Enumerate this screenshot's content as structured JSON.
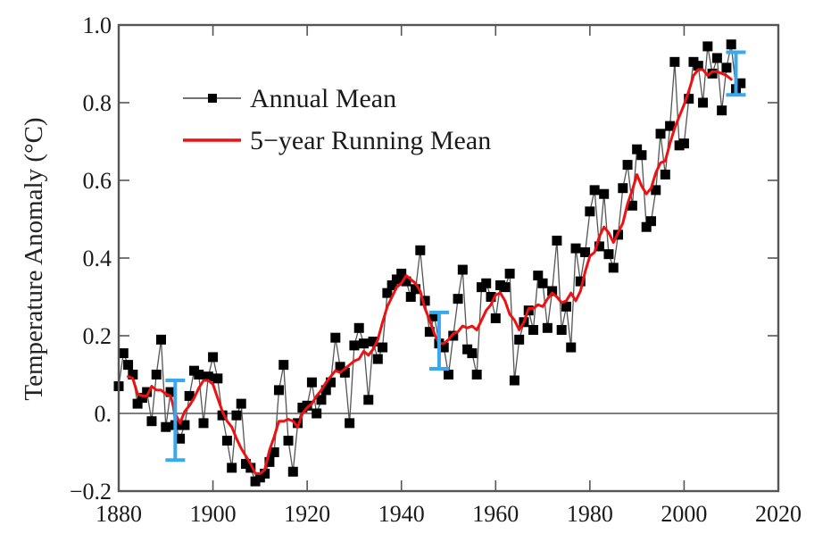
{
  "chart_data": {
    "type": "line",
    "title": "",
    "xlabel": "",
    "ylabel": "Temperature Anomaly (°C)",
    "xlim": [
      1880,
      2020
    ],
    "ylim": [
      -0.2,
      1.0
    ],
    "xticks": [
      1880,
      1900,
      1920,
      1940,
      1960,
      1980,
      2000,
      2020
    ],
    "xtick_labels": [
      "1880",
      "1900",
      "1920",
      "1940",
      "1960",
      "1980",
      "2000",
      "2020"
    ],
    "yticks": [
      -0.2,
      0.0,
      0.2,
      0.4,
      0.6,
      0.8,
      1.0
    ],
    "ytick_labels": [
      "−0.2",
      "0.",
      "0.2",
      "0.4",
      "0.6",
      "0.8",
      "1.0"
    ],
    "grid": false,
    "zero_line": true,
    "legend": {
      "placement": "top-left",
      "entries": [
        {
          "label": "Annual Mean",
          "series": "annual"
        },
        {
          "label": "5−year Running Mean",
          "series": "running"
        }
      ]
    },
    "colors": {
      "annual": "#000000",
      "annual_line": "#555555",
      "running": "#ee1111",
      "error_bar": "#3aa8ee",
      "axis": "#444444"
    },
    "series": [
      {
        "name": "Annual Mean",
        "key": "annual",
        "x": [
          1880,
          1881,
          1882,
          1883,
          1884,
          1885,
          1886,
          1887,
          1888,
          1889,
          1890,
          1891,
          1892,
          1893,
          1894,
          1895,
          1896,
          1897,
          1898,
          1899,
          1900,
          1901,
          1902,
          1903,
          1904,
          1905,
          1906,
          1907,
          1908,
          1909,
          1910,
          1911,
          1912,
          1913,
          1914,
          1915,
          1916,
          1917,
          1918,
          1919,
          1920,
          1921,
          1922,
          1923,
          1924,
          1925,
          1926,
          1927,
          1928,
          1929,
          1930,
          1931,
          1932,
          1933,
          1934,
          1935,
          1936,
          1937,
          1938,
          1939,
          1940,
          1941,
          1942,
          1943,
          1944,
          1945,
          1946,
          1947,
          1948,
          1949,
          1950,
          1951,
          1952,
          1953,
          1954,
          1955,
          1956,
          1957,
          1958,
          1959,
          1960,
          1961,
          1962,
          1963,
          1964,
          1965,
          1966,
          1967,
          1968,
          1969,
          1970,
          1971,
          1972,
          1973,
          1974,
          1975,
          1976,
          1977,
          1978,
          1979,
          1980,
          1981,
          1982,
          1983,
          1984,
          1985,
          1986,
          1987,
          1988,
          1989,
          1990,
          1991,
          1992,
          1993,
          1994,
          1995,
          1996,
          1997,
          1998,
          1999,
          2000,
          2001,
          2002,
          2003,
          2004,
          2005,
          2006,
          2007,
          2008,
          2009,
          2010,
          2011,
          2012
        ],
        "y": [
          0.07,
          0.155,
          0.125,
          0.1,
          0.025,
          0.04,
          0.055,
          -0.02,
          0.1,
          0.19,
          -0.035,
          0.055,
          -0.03,
          -0.065,
          -0.03,
          0.045,
          0.11,
          0.1,
          -0.025,
          0.095,
          0.145,
          0.09,
          -0.005,
          -0.07,
          -0.14,
          -0.005,
          0.025,
          -0.13,
          -0.14,
          -0.175,
          -0.165,
          -0.155,
          -0.125,
          -0.1,
          0.06,
          0.125,
          -0.07,
          -0.15,
          -0.025,
          0.015,
          0.02,
          0.08,
          0.0,
          0.035,
          0.06,
          0.08,
          0.195,
          0.12,
          0.105,
          -0.025,
          0.175,
          0.22,
          0.18,
          0.035,
          0.185,
          0.14,
          0.17,
          0.31,
          0.33,
          0.345,
          0.36,
          0.34,
          0.3,
          0.32,
          0.42,
          0.29,
          0.21,
          0.25,
          0.18,
          0.17,
          0.1,
          0.2,
          0.295,
          0.37,
          0.165,
          0.155,
          0.1,
          0.325,
          0.335,
          0.3,
          0.245,
          0.33,
          0.325,
          0.36,
          0.085,
          0.19,
          0.235,
          0.265,
          0.215,
          0.355,
          0.335,
          0.22,
          0.315,
          0.445,
          0.215,
          0.275,
          0.17,
          0.425,
          0.34,
          0.415,
          0.52,
          0.575,
          0.43,
          0.565,
          0.41,
          0.375,
          0.46,
          0.58,
          0.64,
          0.535,
          0.68,
          0.665,
          0.48,
          0.495,
          0.575,
          0.72,
          0.615,
          0.74,
          0.905,
          0.69,
          0.695,
          0.81,
          0.905,
          0.895,
          0.8,
          0.945,
          0.875,
          0.915,
          0.78,
          0.89,
          0.95,
          0.835,
          0.85
        ]
      },
      {
        "name": "5−year Running Mean",
        "key": "running",
        "x": [
          1882,
          1883,
          1884,
          1885,
          1886,
          1887,
          1888,
          1889,
          1890,
          1891,
          1892,
          1893,
          1894,
          1895,
          1896,
          1897,
          1898,
          1899,
          1900,
          1901,
          1902,
          1903,
          1904,
          1905,
          1906,
          1907,
          1908,
          1909,
          1910,
          1911,
          1912,
          1913,
          1914,
          1915,
          1916,
          1917,
          1918,
          1919,
          1920,
          1921,
          1922,
          1923,
          1924,
          1925,
          1926,
          1927,
          1928,
          1929,
          1930,
          1931,
          1932,
          1933,
          1934,
          1935,
          1936,
          1937,
          1938,
          1939,
          1940,
          1941,
          1942,
          1943,
          1944,
          1945,
          1946,
          1947,
          1948,
          1949,
          1950,
          1951,
          1952,
          1953,
          1954,
          1955,
          1956,
          1957,
          1958,
          1959,
          1960,
          1961,
          1962,
          1963,
          1964,
          1965,
          1966,
          1967,
          1968,
          1969,
          1970,
          1971,
          1972,
          1973,
          1974,
          1975,
          1976,
          1977,
          1978,
          1979,
          1980,
          1981,
          1982,
          1983,
          1984,
          1985,
          1986,
          1987,
          1988,
          1989,
          1990,
          1991,
          1992,
          1993,
          1994,
          1995,
          1996,
          1997,
          1998,
          1999,
          2000,
          2001,
          2002,
          2003,
          2004,
          2005,
          2006,
          2007,
          2008,
          2009,
          2010
        ],
        "y": [
          0.095,
          0.09,
          0.05,
          0.045,
          0.045,
          0.07,
          0.06,
          0.06,
          0.05,
          0.045,
          0.0,
          -0.025,
          0.005,
          0.02,
          0.04,
          0.065,
          0.085,
          0.085,
          0.075,
          0.04,
          0.005,
          -0.02,
          -0.035,
          -0.065,
          -0.09,
          -0.11,
          -0.13,
          -0.155,
          -0.155,
          -0.145,
          -0.095,
          -0.06,
          -0.02,
          -0.02,
          -0.015,
          -0.02,
          -0.035,
          0.0,
          0.015,
          0.025,
          0.045,
          0.06,
          0.08,
          0.095,
          0.11,
          0.105,
          0.115,
          0.125,
          0.135,
          0.14,
          0.16,
          0.15,
          0.165,
          0.19,
          0.235,
          0.275,
          0.3,
          0.325,
          0.335,
          0.355,
          0.345,
          0.335,
          0.315,
          0.27,
          0.24,
          0.205,
          0.18,
          0.18,
          0.19,
          0.205,
          0.21,
          0.225,
          0.22,
          0.225,
          0.215,
          0.24,
          0.265,
          0.28,
          0.305,
          0.31,
          0.29,
          0.255,
          0.24,
          0.215,
          0.235,
          0.27,
          0.27,
          0.28,
          0.275,
          0.295,
          0.31,
          0.3,
          0.285,
          0.29,
          0.31,
          0.29,
          0.315,
          0.365,
          0.405,
          0.415,
          0.455,
          0.48,
          0.465,
          0.44,
          0.465,
          0.49,
          0.54,
          0.575,
          0.615,
          0.585,
          0.565,
          0.58,
          0.62,
          0.645,
          0.65,
          0.695,
          0.735,
          0.765,
          0.795,
          0.83,
          0.87,
          0.885,
          0.885,
          0.87,
          0.88,
          0.88,
          0.875,
          0.87,
          0.86
        ]
      }
    ],
    "error_bars": [
      {
        "x": 1892,
        "y": -0.015,
        "low": -0.12,
        "high": 0.085
      },
      {
        "x": 1948,
        "y": 0.19,
        "low": 0.115,
        "high": 0.26
      },
      {
        "x": 2011,
        "y": 0.875,
        "low": 0.82,
        "high": 0.93
      }
    ]
  }
}
